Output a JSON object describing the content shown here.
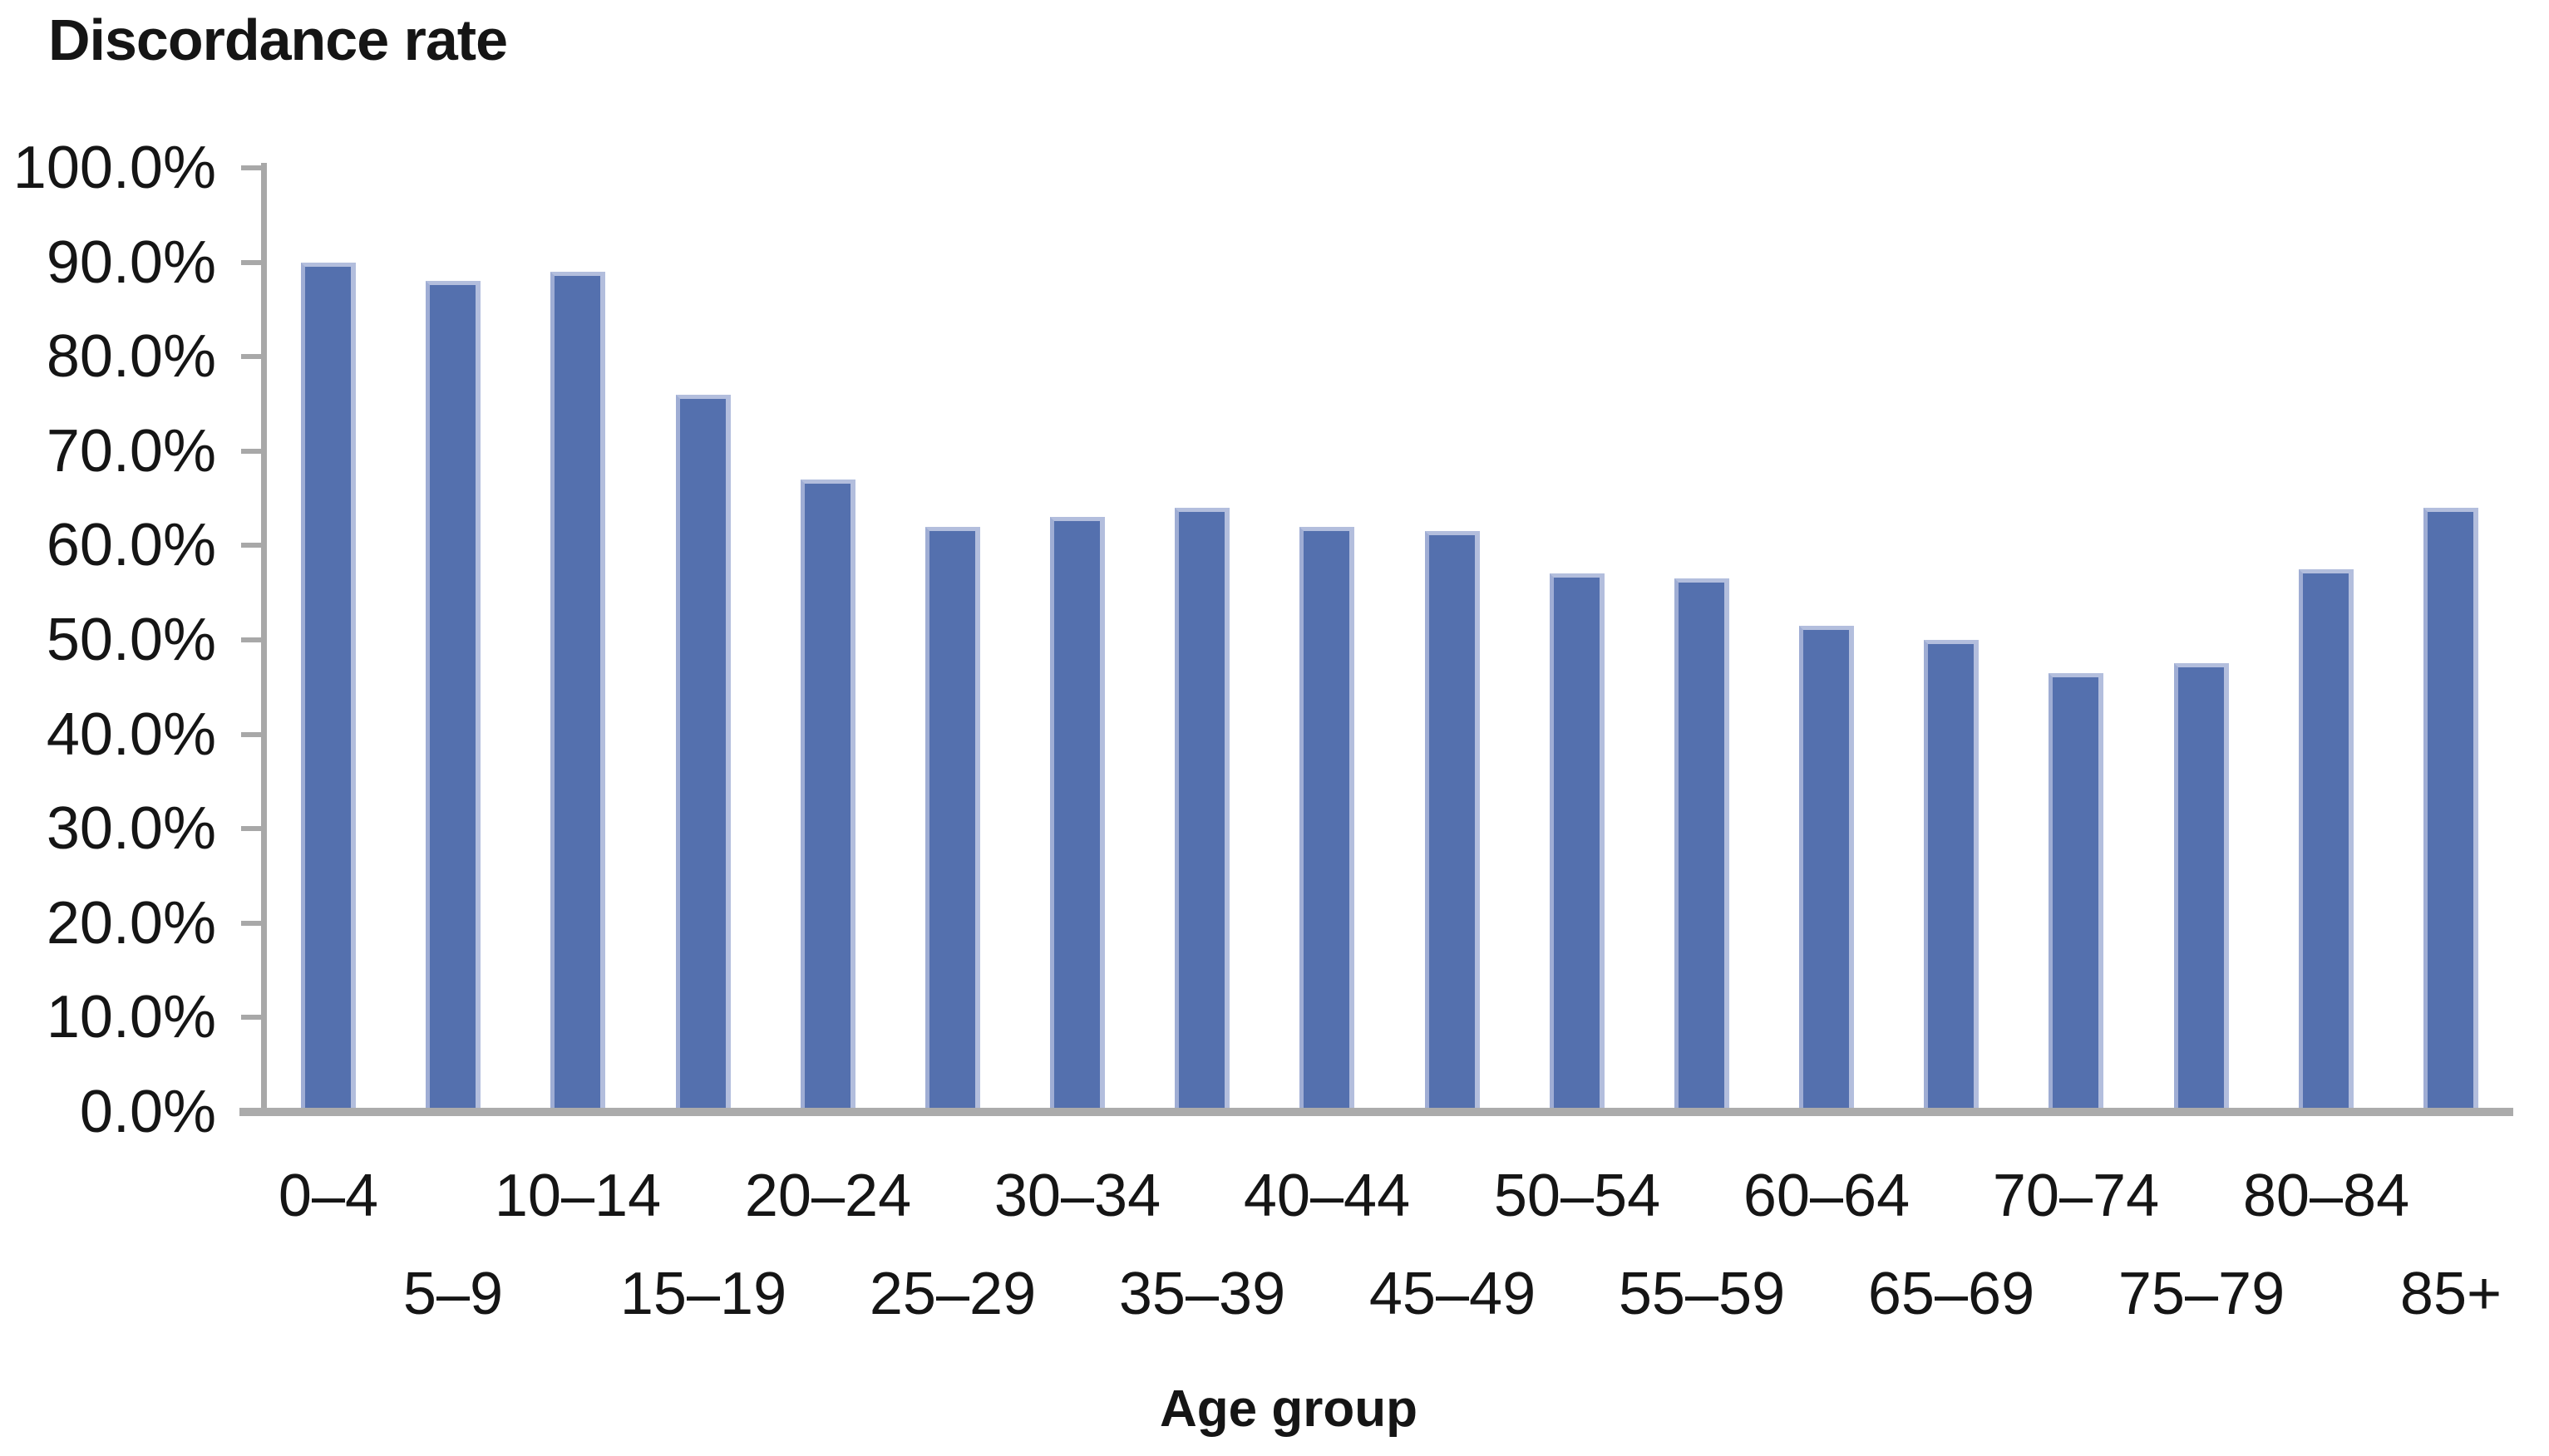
{
  "chart_data": {
    "type": "bar",
    "title": "Discordance rate",
    "xlabel": "Age group",
    "categories": [
      "0–4",
      "5–9",
      "10–14",
      "15–19",
      "20–24",
      "25–29",
      "30–34",
      "35–39",
      "40–44",
      "45–49",
      "50–54",
      "55–59",
      "60–64",
      "65–69",
      "70–74",
      "75–79",
      "80–84",
      "85+"
    ],
    "values": [
      90,
      88,
      89,
      76,
      67,
      62,
      63,
      64,
      62,
      61.5,
      57,
      56.5,
      51.5,
      50,
      46.5,
      47.5,
      57.5,
      64
    ],
    "value_unit": "%",
    "ylim": [
      0,
      100
    ],
    "y_tick_labels": [
      "100.0%",
      "90.0%",
      "80.0%",
      "70.0%",
      "60.0%",
      "50.0%",
      "40.0%",
      "30.0%",
      "20.0%",
      "10.0%",
      "0.0%"
    ],
    "grid": false,
    "legend": "none",
    "colors": {
      "bar": "#5470ae",
      "bar_edge": "#b3bedd",
      "axis": "#a8a8a8",
      "text": "#151515",
      "background": "#ffffff"
    }
  }
}
